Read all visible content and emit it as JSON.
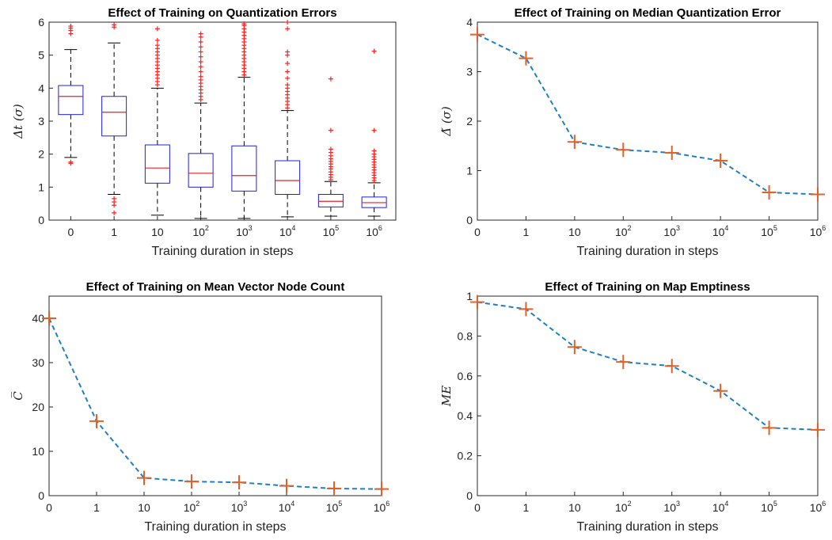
{
  "colors": {
    "box_edge": "#1f1fe0",
    "median_line": "#e8202a",
    "outlier": "#ff2020",
    "whisker": "#000000",
    "dash_line": "#1f7fc4",
    "marker": "#e0622a"
  },
  "chart_data": [
    {
      "id": "quantization-errors",
      "type": "box",
      "title": "Effect of Training on Quantization Errors",
      "xlabel": "Training duration in steps",
      "ylabel": "Δt (σ)",
      "categories": [
        "0",
        "1",
        "10",
        "10^2",
        "10^3",
        "10^4",
        "10^5",
        "10^6"
      ],
      "ylim": [
        0,
        6
      ],
      "yticks": [
        0,
        1,
        2,
        3,
        4,
        5,
        6
      ],
      "boxes": [
        {
          "lo": 1.9,
          "q1": 3.2,
          "med": 3.75,
          "q3": 4.08,
          "hi": 5.17,
          "outliers": [
            1.72,
            1.76,
            5.65,
            5.75,
            5.82,
            5.88
          ]
        },
        {
          "lo": 0.78,
          "q1": 2.55,
          "med": 3.27,
          "q3": 3.75,
          "hi": 5.37,
          "outliers": [
            0.22,
            0.45,
            0.55,
            0.65,
            5.85,
            5.92
          ]
        },
        {
          "lo": 0.15,
          "q1": 1.12,
          "med": 1.58,
          "q3": 2.28,
          "hi": 4.0,
          "outliers": [
            4.1,
            4.2,
            4.3,
            4.4,
            4.5,
            4.6,
            4.7,
            4.8,
            4.9,
            5.0,
            5.1,
            5.2,
            5.3,
            5.45,
            5.8
          ]
        },
        {
          "lo": 0.05,
          "q1": 1.0,
          "med": 1.42,
          "q3": 2.02,
          "hi": 3.55,
          "outliers": [
            3.65,
            3.75,
            3.85,
            3.95,
            4.05,
            4.15,
            4.25,
            4.35,
            4.5,
            4.65,
            4.8,
            4.95,
            5.1,
            5.25,
            5.4,
            5.55,
            5.65
          ]
        },
        {
          "lo": 0.05,
          "q1": 0.88,
          "med": 1.35,
          "q3": 2.25,
          "hi": 4.33,
          "outliers": [
            4.4,
            4.5,
            4.6,
            4.7,
            4.8,
            4.9,
            5.0,
            5.1,
            5.2,
            5.3,
            5.4,
            5.5,
            5.6,
            5.7,
            5.8,
            5.9,
            5.95
          ]
        },
        {
          "lo": 0.1,
          "q1": 0.78,
          "med": 1.2,
          "q3": 1.8,
          "hi": 3.32,
          "outliers": [
            3.4,
            3.5,
            3.6,
            3.7,
            3.8,
            3.9,
            4.0,
            4.1,
            4.3,
            4.5,
            4.75,
            5.0,
            5.1,
            5.8,
            6.0
          ]
        },
        {
          "lo": 0.12,
          "q1": 0.4,
          "med": 0.57,
          "q3": 0.78,
          "hi": 1.17,
          "outliers": [
            1.22,
            1.3,
            1.38,
            1.46,
            1.55,
            1.62,
            1.7,
            1.78,
            1.86,
            1.95,
            2.05,
            2.15,
            2.72,
            4.28
          ]
        },
        {
          "lo": 0.12,
          "q1": 0.38,
          "med": 0.53,
          "q3": 0.7,
          "hi": 1.13,
          "outliers": [
            1.2,
            1.28,
            1.36,
            1.44,
            1.52,
            1.6,
            1.68,
            1.76,
            1.84,
            1.92,
            2.0,
            2.1,
            2.72,
            5.12
          ]
        }
      ]
    },
    {
      "id": "median-quantization-error",
      "type": "line",
      "title": "Effect of Training on Median Quantization Error",
      "xlabel": "Training duration in steps",
      "ylabel": "Δ̃ (σ)",
      "categories": [
        "0",
        "1",
        "10",
        "10^2",
        "10^3",
        "10^4",
        "10^5",
        "10^6"
      ],
      "ylim": [
        0,
        4
      ],
      "yticks": [
        0,
        1,
        2,
        3,
        4
      ],
      "values": [
        3.75,
        3.27,
        1.58,
        1.42,
        1.36,
        1.2,
        0.56,
        0.52
      ]
    },
    {
      "id": "mean-vector-node-count",
      "type": "line",
      "title": "Effect of Training on Mean Vector Node Count",
      "xlabel": "Training duration in steps",
      "ylabel": "C̅",
      "categories": [
        "0",
        "1",
        "10",
        "10^2",
        "10^3",
        "10^4",
        "10^5",
        "10^6"
      ],
      "ylim": [
        0,
        45
      ],
      "yticks": [
        0,
        10,
        20,
        30,
        40
      ],
      "values": [
        40.0,
        16.8,
        4.0,
        3.2,
        3.0,
        2.2,
        1.6,
        1.5
      ]
    },
    {
      "id": "map-emptiness",
      "type": "line",
      "title": "Effect of Training on Map Emptiness",
      "xlabel": "Training duration in steps",
      "ylabel": "ME",
      "categories": [
        "0",
        "1",
        "10",
        "10^2",
        "10^3",
        "10^4",
        "10^5",
        "10^6"
      ],
      "ylim": [
        0,
        1
      ],
      "yticks": [
        0,
        0.2,
        0.4,
        0.6,
        0.8,
        1
      ],
      "values": [
        0.97,
        0.935,
        0.745,
        0.67,
        0.65,
        0.525,
        0.34,
        0.33
      ]
    }
  ]
}
